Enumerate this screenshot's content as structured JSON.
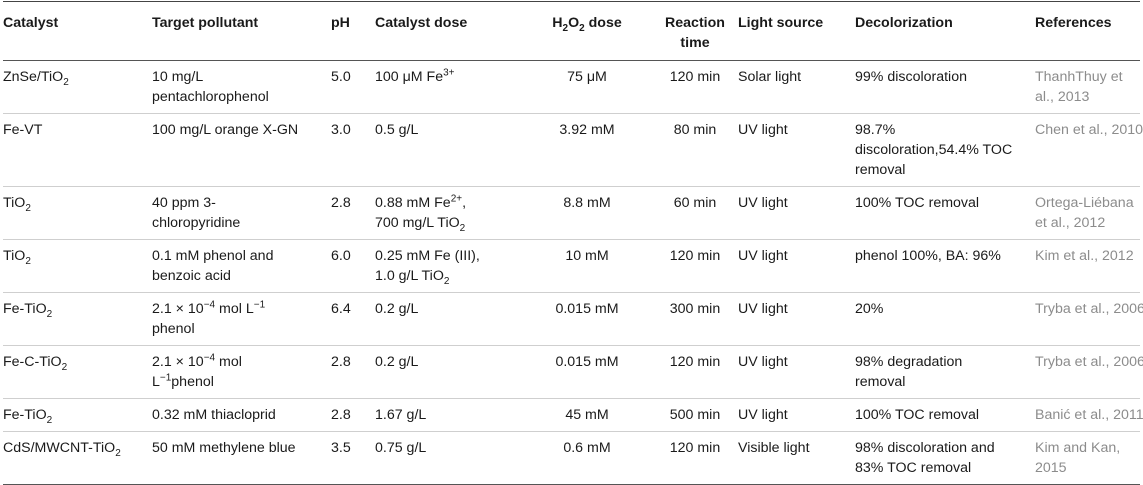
{
  "headers": {
    "catalyst": "Catalyst",
    "pollutant": "Target pollutant",
    "ph": "pH",
    "catalyst_dose": "Catalyst dose",
    "h2o2_pre": "H",
    "h2o2_sub1": "2",
    "h2o2_mid": "O",
    "h2o2_sub2": "2",
    "h2o2_post": " dose",
    "time_line1": "Reaction",
    "time_line2": "time",
    "light": "Light source",
    "decolor": "Decolorization",
    "refs": "References"
  },
  "rows": [
    {
      "catalyst": "ZnSe/TiO",
      "catalyst_sub": "2",
      "pollutant": "10 mg/L pentachlorophenol",
      "ph": "5.0",
      "dose_a": "100 μM Fe",
      "dose_a_sup": "3+",
      "h2o2": "75 μM",
      "time": "120 min",
      "light": "Solar light",
      "decolor": "99% discoloration",
      "ref": "ThanhThuy et al., 2013"
    },
    {
      "catalyst": "Fe-VT",
      "pollutant": "100 mg/L orange X-GN",
      "ph": "3.0",
      "dose_a": "0.5 g/L",
      "h2o2": "3.92 mM",
      "time": "80 min",
      "light": "UV light",
      "decolor": "98.7% discoloration,54.4% TOC removal",
      "ref": "Chen et al., 2010"
    },
    {
      "catalyst": "TiO",
      "catalyst_sub": "2",
      "pollutant": "40 ppm 3-chloropyridine",
      "ph": "2.8",
      "dose_a": "0.88 mM Fe",
      "dose_a_sup": "2+",
      "dose_a_tail": ",",
      "dose_b": "700 mg/L TiO",
      "dose_b_sub": "2",
      "h2o2": "8.8 mM",
      "time": "60 min",
      "light": "UV light",
      "decolor": "100% TOC removal",
      "ref": "Ortega-Liébana et al., 2012"
    },
    {
      "catalyst": "TiO",
      "catalyst_sub": "2",
      "pollutant": "0.1 mM phenol and benzoic acid",
      "ph": "6.0",
      "dose_a": "0.25 mM Fe (III),",
      "dose_b": "1.0 g/L TiO",
      "dose_b_sub": "2",
      "h2o2": "10 mM",
      "time": "120 min",
      "light": "UV light",
      "decolor": "phenol 100%, BA: 96%",
      "ref": "Kim et al., 2012"
    },
    {
      "catalyst": "Fe-TiO",
      "catalyst_sub": "2",
      "pollutant_a": "2.1 × 10",
      "pollutant_a_sup": "−4",
      "pollutant_a_tail": " mol L",
      "pollutant_a_sup2": "−1",
      "pollutant_b": "phenol",
      "ph": "6.4",
      "dose_a": "0.2 g/L",
      "h2o2": "0.015 mM",
      "time": "300 min",
      "light": "UV light",
      "decolor": "20%",
      "ref": "Tryba et al., 2006"
    },
    {
      "catalyst": "Fe-C-TiO",
      "catalyst_sub": "2",
      "pollutant_a": "2.1 × 10",
      "pollutant_a_sup": "−4",
      "pollutant_a_tail": " mol",
      "pollutant_b_pre": "L",
      "pollutant_b_sup": "−1",
      "pollutant_b": "phenol",
      "ph": "2.8",
      "dose_a": "0.2 g/L",
      "h2o2": "0.015 mM",
      "time": "120 min",
      "light": "UV light",
      "decolor": "98% degradation removal",
      "ref": "Tryba et al., 2006"
    },
    {
      "catalyst": "Fe-TiO",
      "catalyst_sub": "2",
      "pollutant": "0.32 mM thiacloprid",
      "ph": "2.8",
      "dose_a": "1.67 g/L",
      "h2o2": "45 mM",
      "time": "500 min",
      "light": "UV light",
      "decolor": "100% TOC removal",
      "ref": "Banić et al., 2011"
    },
    {
      "catalyst": "CdS/MWCNT-TiO",
      "catalyst_sub": "2",
      "pollutant": "50 mM methylene blue",
      "ph": "3.5",
      "dose_a": "0.75 g/L",
      "h2o2": "0.6 mM",
      "time": "120 min",
      "light": "Visible light",
      "decolor": "98% discoloration and 83% TOC removal",
      "ref": "Kim and Kan, 2015"
    }
  ]
}
